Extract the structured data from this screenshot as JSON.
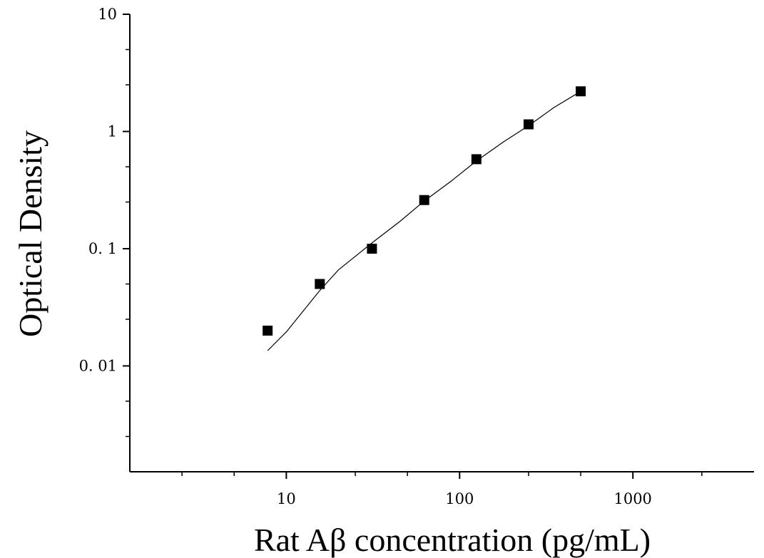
{
  "chart_data": {
    "type": "scatter",
    "title": "",
    "xlabel": "Rat Aβ concentration (pg/mL)",
    "ylabel": "Optical Density",
    "x_scale": "log",
    "y_scale": "log",
    "xlim": [
      1.25,
      5000
    ],
    "ylim": [
      0.00125,
      10
    ],
    "x_ticks": [
      {
        "value": 10,
        "label": "10"
      },
      {
        "value": 100,
        "label": "100"
      },
      {
        "value": 1000,
        "label": "1000"
      }
    ],
    "y_ticks": [
      {
        "value": 10,
        "label": "10"
      },
      {
        "value": 1,
        "label": "1"
      },
      {
        "value": 0.1,
        "label": "0. 1"
      },
      {
        "value": 0.01,
        "label": "0. 01"
      }
    ],
    "grid": false,
    "legend": "none",
    "series": [
      {
        "marker": "square",
        "color": "#000000",
        "x": [
          7.8,
          15.6,
          31.2,
          62.5,
          125,
          250,
          500
        ],
        "y": [
          0.02,
          0.05,
          0.1,
          0.26,
          0.58,
          1.15,
          2.2
        ]
      }
    ],
    "fit_curve": {
      "color": "#000000",
      "x": [
        7.8,
        10,
        15.6,
        20,
        31.2,
        45,
        62.5,
        90,
        125,
        180,
        250,
        350,
        500
      ],
      "y": [
        0.0135,
        0.0195,
        0.044,
        0.066,
        0.112,
        0.17,
        0.255,
        0.38,
        0.56,
        0.82,
        1.12,
        1.6,
        2.2
      ]
    }
  }
}
